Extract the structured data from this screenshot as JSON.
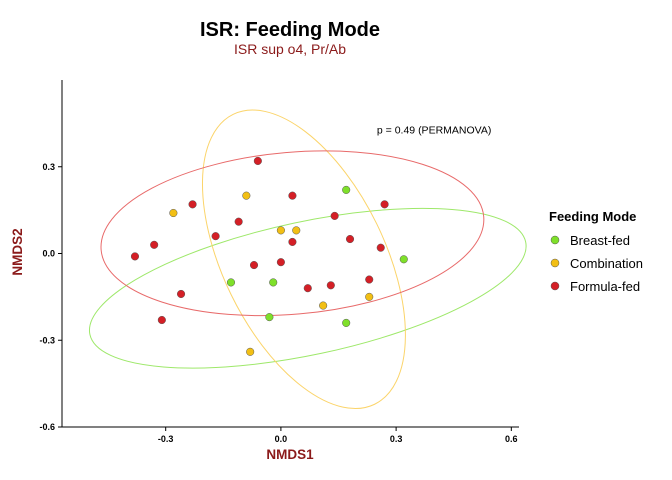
{
  "chart_data": {
    "type": "scatter",
    "title": "ISR: Feeding Mode",
    "subtitle": "ISR sup o4, Pr/Ab",
    "xlabel": "NMDS1",
    "ylabel": "NMDS2",
    "xlim": [
      -0.57,
      0.62
    ],
    "ylim": [
      -0.6,
      0.6
    ],
    "xticks": [
      -0.3,
      0.0,
      0.3,
      0.6
    ],
    "xtick_labels": [
      "-0.3",
      "0.0",
      "0.3",
      "0.6"
    ],
    "yticks": [
      -0.6,
      -0.3,
      0.0,
      0.3
    ],
    "ytick_labels": [
      "-0.6",
      "-0.3",
      "0.0",
      "0.3"
    ],
    "grid": false,
    "legend": {
      "title": "Feeding Mode",
      "placement": "right"
    },
    "annotation": {
      "text": "p =  0.49 (PERMANOVA)",
      "x": 0.25,
      "y": 0.415
    },
    "colors": {
      "title": "#000000",
      "subtitle": "#8b1a1a",
      "axis_title": "#8b1a1a"
    },
    "series": [
      {
        "name": "Breast-fed",
        "color": "#7fe02a",
        "ellipse_color": "#9ee86a",
        "ellipse": {
          "cx": 0.07,
          "cy": -0.12,
          "rx": 0.58,
          "ry": 0.23,
          "angle_deg": 12
        },
        "points": [
          {
            "x": 0.17,
            "y": 0.22
          },
          {
            "x": 0.32,
            "y": -0.02
          },
          {
            "x": -0.13,
            "y": -0.1
          },
          {
            "x": -0.02,
            "y": -0.1
          },
          {
            "x": -0.03,
            "y": -0.22
          },
          {
            "x": 0.17,
            "y": -0.24
          }
        ]
      },
      {
        "name": "Combination",
        "color": "#f2bf14",
        "ellipse_color": "#fbd46a",
        "ellipse": {
          "cx": 0.06,
          "cy": -0.02,
          "rx": 0.42,
          "ry": 0.28,
          "angle_deg": -64
        },
        "points": [
          {
            "x": -0.28,
            "y": 0.14
          },
          {
            "x": -0.09,
            "y": 0.2
          },
          {
            "x": 0.0,
            "y": 0.08
          },
          {
            "x": 0.04,
            "y": 0.08
          },
          {
            "x": 0.11,
            "y": -0.18
          },
          {
            "x": 0.23,
            "y": -0.15
          },
          {
            "x": -0.08,
            "y": -0.34
          }
        ]
      },
      {
        "name": "Formula-fed",
        "color": "#d41f26",
        "ellipse_color": "#e86a6a",
        "ellipse": {
          "cx": 0.03,
          "cy": 0.07,
          "rx": 0.5,
          "ry": 0.28,
          "angle_deg": 5
        },
        "points": [
          {
            "x": -0.06,
            "y": 0.32
          },
          {
            "x": -0.23,
            "y": 0.17
          },
          {
            "x": -0.11,
            "y": 0.11
          },
          {
            "x": -0.17,
            "y": 0.06
          },
          {
            "x": -0.33,
            "y": 0.03
          },
          {
            "x": -0.38,
            "y": -0.01
          },
          {
            "x": 0.03,
            "y": 0.2
          },
          {
            "x": 0.14,
            "y": 0.13
          },
          {
            "x": 0.27,
            "y": 0.17
          },
          {
            "x": 0.03,
            "y": 0.04
          },
          {
            "x": 0.18,
            "y": 0.05
          },
          {
            "x": 0.26,
            "y": 0.02
          },
          {
            "x": -0.07,
            "y": -0.04
          },
          {
            "x": 0.0,
            "y": -0.03
          },
          {
            "x": 0.07,
            "y": -0.12
          },
          {
            "x": 0.13,
            "y": -0.11
          },
          {
            "x": 0.23,
            "y": -0.09
          },
          {
            "x": -0.26,
            "y": -0.14
          },
          {
            "x": -0.31,
            "y": -0.23
          }
        ]
      }
    ]
  }
}
